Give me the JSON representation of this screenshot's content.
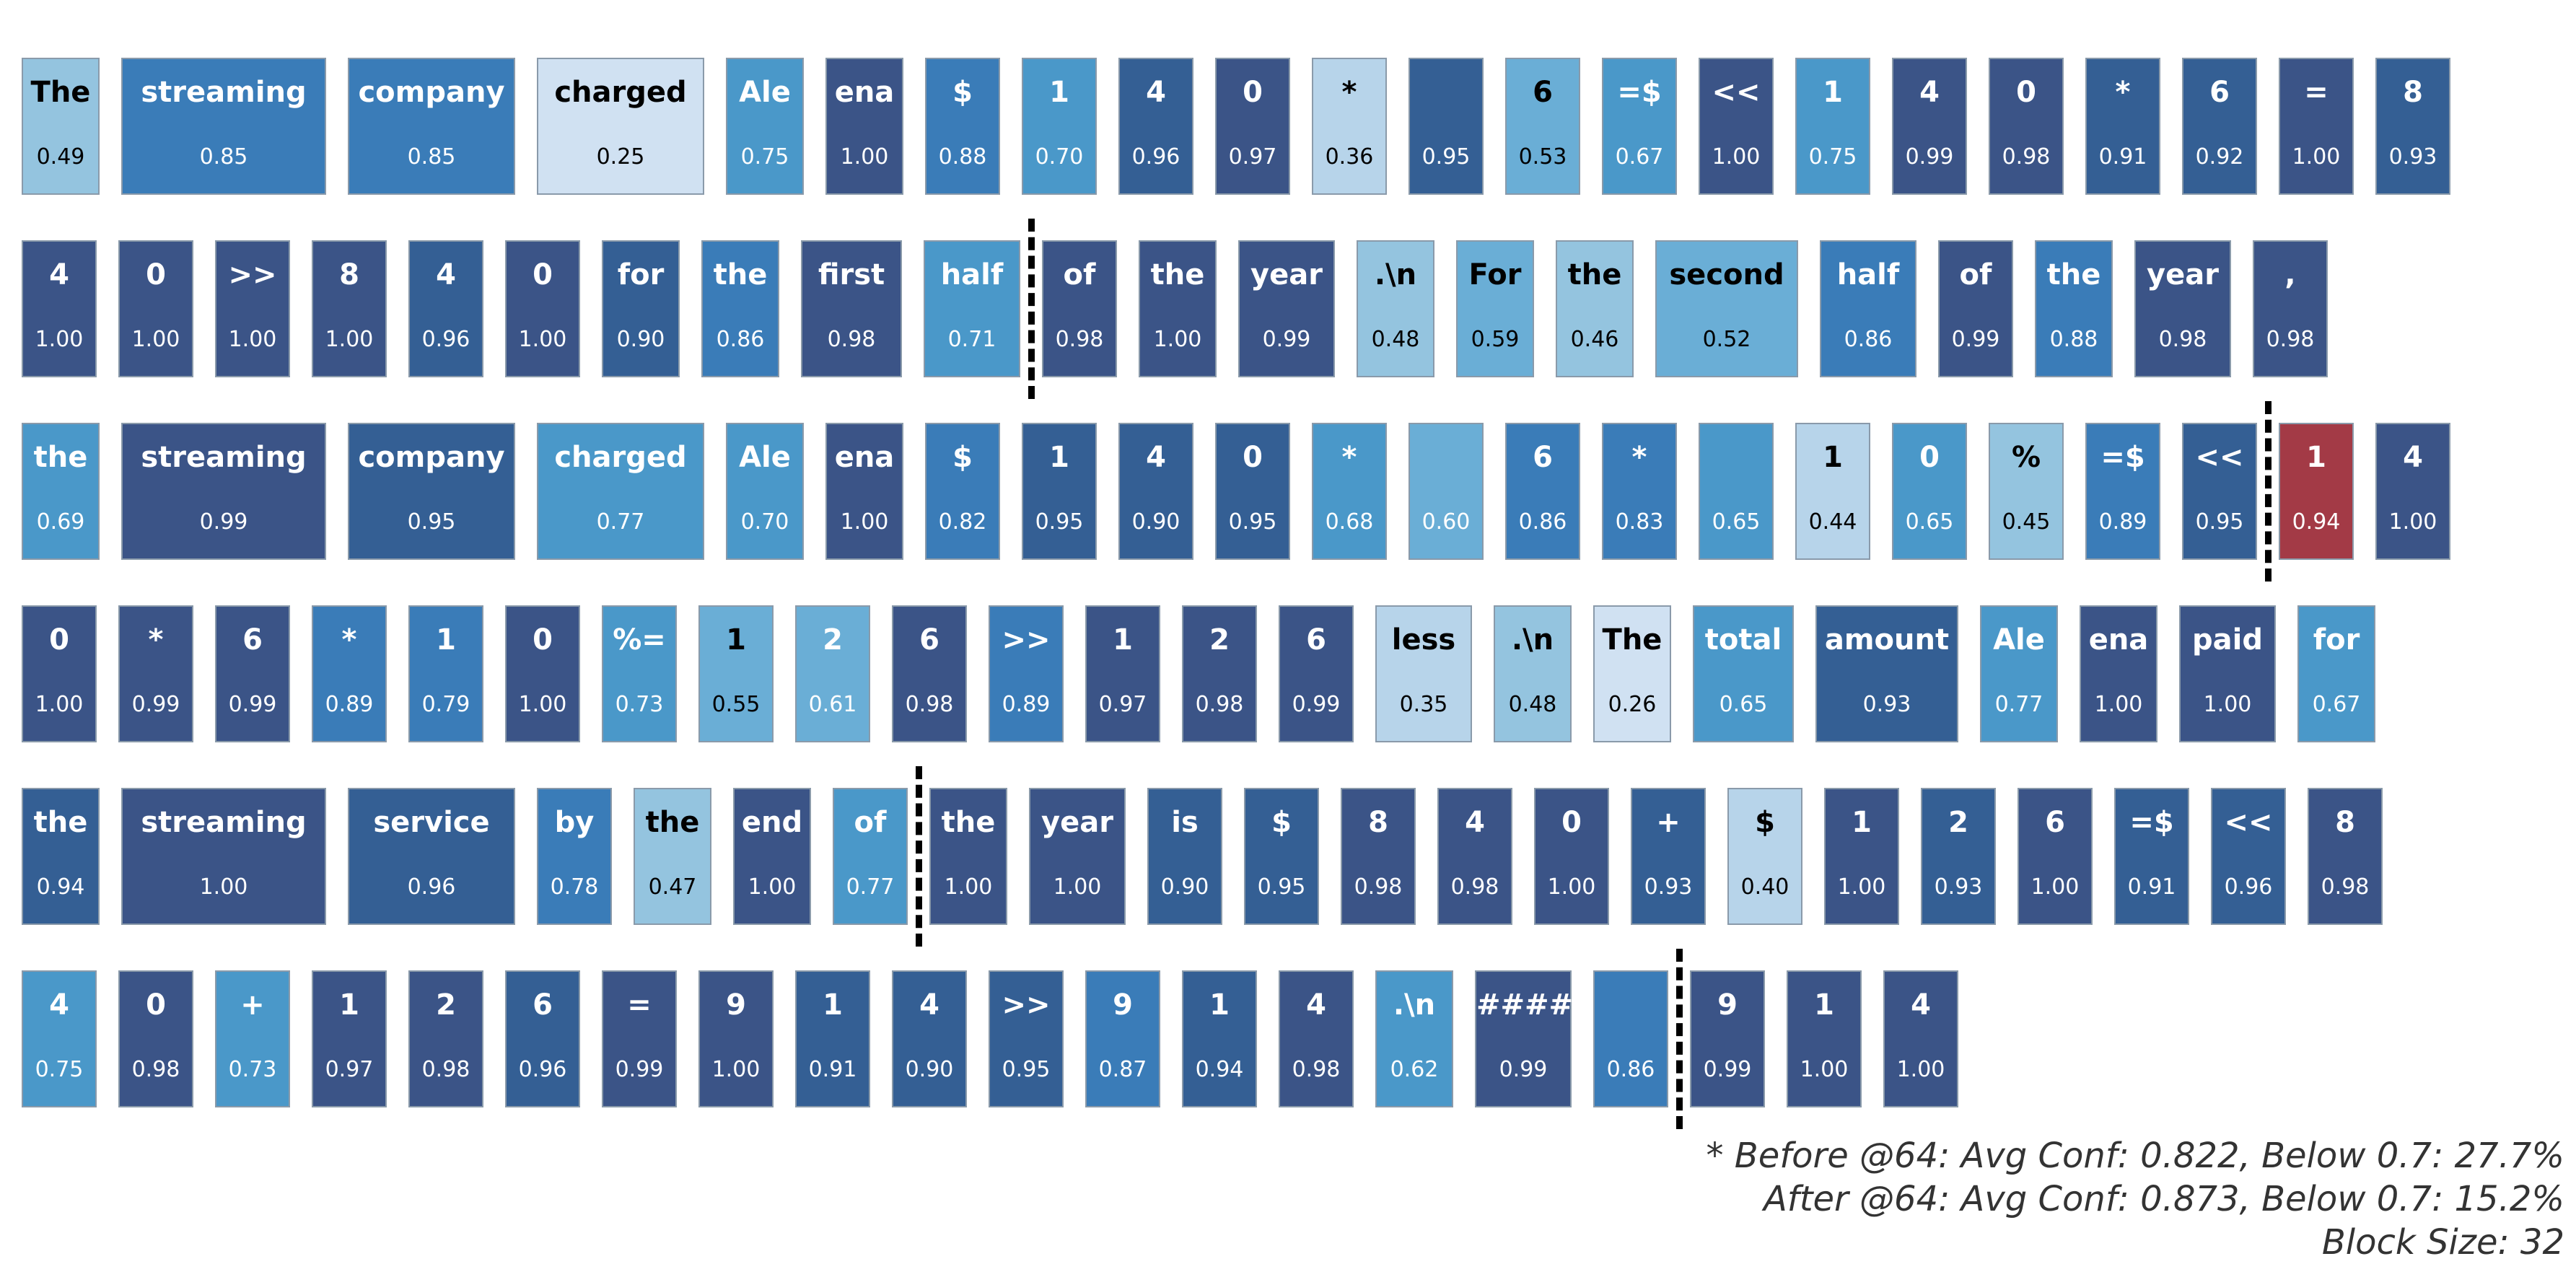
{
  "colors": {
    "highlight": "#a33a46",
    "separator": "#000000",
    "scale": [
      "#d0e1f2",
      "#b7d4ea",
      "#94c4df",
      "#6aaed6",
      "#4a98c9",
      "#3a7cb8",
      "#345f94",
      "#3b5487"
    ]
  },
  "token_rows": [
    [
      {
        "text": "The",
        "conf": "0.49"
      },
      {
        "text": "streaming",
        "conf": "0.85"
      },
      {
        "text": "company",
        "conf": "0.85"
      },
      {
        "text": "charged",
        "conf": "0.25"
      },
      {
        "text": "Ale",
        "conf": "0.75"
      },
      {
        "text": "ena",
        "conf": "1.00"
      },
      {
        "text": "$",
        "conf": "0.88"
      },
      {
        "text": "1",
        "conf": "0.70"
      },
      {
        "text": "4",
        "conf": "0.96"
      },
      {
        "text": "0",
        "conf": "0.97"
      },
      {
        "text": "*",
        "conf": "0.36"
      },
      {
        "text": "",
        "conf": "0.95"
      },
      {
        "text": "6",
        "conf": "0.53"
      },
      {
        "text": "=$",
        "conf": "0.67"
      },
      {
        "text": "<<",
        "conf": "1.00"
      },
      {
        "text": "1",
        "conf": "0.75"
      },
      {
        "text": "4",
        "conf": "0.99"
      },
      {
        "text": "0",
        "conf": "0.98"
      },
      {
        "text": "*",
        "conf": "0.91"
      },
      {
        "text": "6",
        "conf": "0.92"
      },
      {
        "text": "=",
        "conf": "1.00"
      },
      {
        "text": "8",
        "conf": "0.93"
      }
    ],
    [
      {
        "text": "4",
        "conf": "1.00"
      },
      {
        "text": "0",
        "conf": "1.00"
      },
      {
        "text": ">>",
        "conf": "1.00"
      },
      {
        "text": "8",
        "conf": "1.00"
      },
      {
        "text": "4",
        "conf": "0.96"
      },
      {
        "text": "0",
        "conf": "1.00"
      },
      {
        "text": "for",
        "conf": "0.90"
      },
      {
        "text": "the",
        "conf": "0.86"
      },
      {
        "text": "first",
        "conf": "0.98"
      },
      {
        "text": "half",
        "conf": "0.71"
      },
      {
        "text": "of",
        "conf": "0.98"
      },
      {
        "text": "the",
        "conf": "1.00"
      },
      {
        "text": "year",
        "conf": "0.99"
      },
      {
        "text": ".\\n",
        "conf": "0.48"
      },
      {
        "text": "For",
        "conf": "0.59"
      },
      {
        "text": "the",
        "conf": "0.46"
      },
      {
        "text": "second",
        "conf": "0.52"
      },
      {
        "text": "half",
        "conf": "0.86"
      },
      {
        "text": "of",
        "conf": "0.99"
      },
      {
        "text": "the",
        "conf": "0.88"
      },
      {
        "text": "year",
        "conf": "0.98"
      },
      {
        "text": ",",
        "conf": "0.98"
      }
    ],
    [
      {
        "text": "the",
        "conf": "0.69"
      },
      {
        "text": "streaming",
        "conf": "0.99"
      },
      {
        "text": "company",
        "conf": "0.95"
      },
      {
        "text": "charged",
        "conf": "0.77"
      },
      {
        "text": "Ale",
        "conf": "0.70"
      },
      {
        "text": "ena",
        "conf": "1.00"
      },
      {
        "text": "$",
        "conf": "0.82"
      },
      {
        "text": "1",
        "conf": "0.95"
      },
      {
        "text": "4",
        "conf": "0.90"
      },
      {
        "text": "0",
        "conf": "0.95"
      },
      {
        "text": "*",
        "conf": "0.68"
      },
      {
        "text": "",
        "conf": "0.60"
      },
      {
        "text": "6",
        "conf": "0.86"
      },
      {
        "text": "*",
        "conf": "0.83"
      },
      {
        "text": "",
        "conf": "0.65"
      },
      {
        "text": "1",
        "conf": "0.44"
      },
      {
        "text": "0",
        "conf": "0.65"
      },
      {
        "text": "%",
        "conf": "0.45"
      },
      {
        "text": "=$",
        "conf": "0.89"
      },
      {
        "text": "<<",
        "conf": "0.95"
      },
      {
        "text": "1",
        "conf": "0.94",
        "highlight": true
      },
      {
        "text": "4",
        "conf": "1.00"
      }
    ],
    [
      {
        "text": "0",
        "conf": "1.00"
      },
      {
        "text": "*",
        "conf": "0.99"
      },
      {
        "text": "6",
        "conf": "0.99"
      },
      {
        "text": "*",
        "conf": "0.89"
      },
      {
        "text": "1",
        "conf": "0.79"
      },
      {
        "text": "0",
        "conf": "1.00"
      },
      {
        "text": "%=",
        "conf": "0.73"
      },
      {
        "text": "1",
        "conf": "0.55"
      },
      {
        "text": "2",
        "conf": "0.61"
      },
      {
        "text": "6",
        "conf": "0.98"
      },
      {
        "text": ">>",
        "conf": "0.89"
      },
      {
        "text": "1",
        "conf": "0.97"
      },
      {
        "text": "2",
        "conf": "0.98"
      },
      {
        "text": "6",
        "conf": "0.99"
      },
      {
        "text": "less",
        "conf": "0.35"
      },
      {
        "text": ".\\n",
        "conf": "0.48"
      },
      {
        "text": "The",
        "conf": "0.26"
      },
      {
        "text": "total",
        "conf": "0.65"
      },
      {
        "text": "amount",
        "conf": "0.93"
      },
      {
        "text": "Ale",
        "conf": "0.77"
      },
      {
        "text": "ena",
        "conf": "1.00"
      },
      {
        "text": "paid",
        "conf": "1.00"
      },
      {
        "text": "for",
        "conf": "0.67"
      }
    ],
    [
      {
        "text": "the",
        "conf": "0.94"
      },
      {
        "text": "streaming",
        "conf": "1.00"
      },
      {
        "text": "service",
        "conf": "0.96"
      },
      {
        "text": "by",
        "conf": "0.78"
      },
      {
        "text": "the",
        "conf": "0.47"
      },
      {
        "text": "end",
        "conf": "1.00"
      },
      {
        "text": "of",
        "conf": "0.77"
      },
      {
        "text": "the",
        "conf": "1.00"
      },
      {
        "text": "year",
        "conf": "1.00"
      },
      {
        "text": "is",
        "conf": "0.90"
      },
      {
        "text": "$",
        "conf": "0.95"
      },
      {
        "text": "8",
        "conf": "0.98"
      },
      {
        "text": "4",
        "conf": "0.98"
      },
      {
        "text": "0",
        "conf": "1.00"
      },
      {
        "text": "+",
        "conf": "0.93"
      },
      {
        "text": "$",
        "conf": "0.40"
      },
      {
        "text": "1",
        "conf": "1.00"
      },
      {
        "text": "2",
        "conf": "0.93"
      },
      {
        "text": "6",
        "conf": "1.00"
      },
      {
        "text": "=$",
        "conf": "0.91"
      },
      {
        "text": "<<",
        "conf": "0.96"
      },
      {
        "text": "8",
        "conf": "0.98"
      }
    ],
    [
      {
        "text": "4",
        "conf": "0.75"
      },
      {
        "text": "0",
        "conf": "0.98"
      },
      {
        "text": "+",
        "conf": "0.73"
      },
      {
        "text": "1",
        "conf": "0.97"
      },
      {
        "text": "2",
        "conf": "0.98"
      },
      {
        "text": "6",
        "conf": "0.96"
      },
      {
        "text": "=",
        "conf": "0.99"
      },
      {
        "text": "9",
        "conf": "1.00"
      },
      {
        "text": "1",
        "conf": "0.91"
      },
      {
        "text": "4",
        "conf": "0.90"
      },
      {
        "text": ">>",
        "conf": "0.95"
      },
      {
        "text": "9",
        "conf": "0.87"
      },
      {
        "text": "1",
        "conf": "0.94"
      },
      {
        "text": "4",
        "conf": "0.98"
      },
      {
        "text": ".\\n",
        "conf": "0.62"
      },
      {
        "text": "####",
        "conf": "0.99"
      },
      {
        "text": "",
        "conf": "0.86"
      },
      {
        "text": "9",
        "conf": "0.99"
      },
      {
        "text": "1",
        "conf": "1.00"
      },
      {
        "text": "4",
        "conf": "1.00"
      }
    ]
  ],
  "stats": {
    "before": "* Before @64: Avg Conf: 0.822, Below 0.7: 27.7%",
    "after": "After @64: Avg Conf: 0.873, Below 0.7: 15.2%",
    "block": "Block Size: 32"
  }
}
